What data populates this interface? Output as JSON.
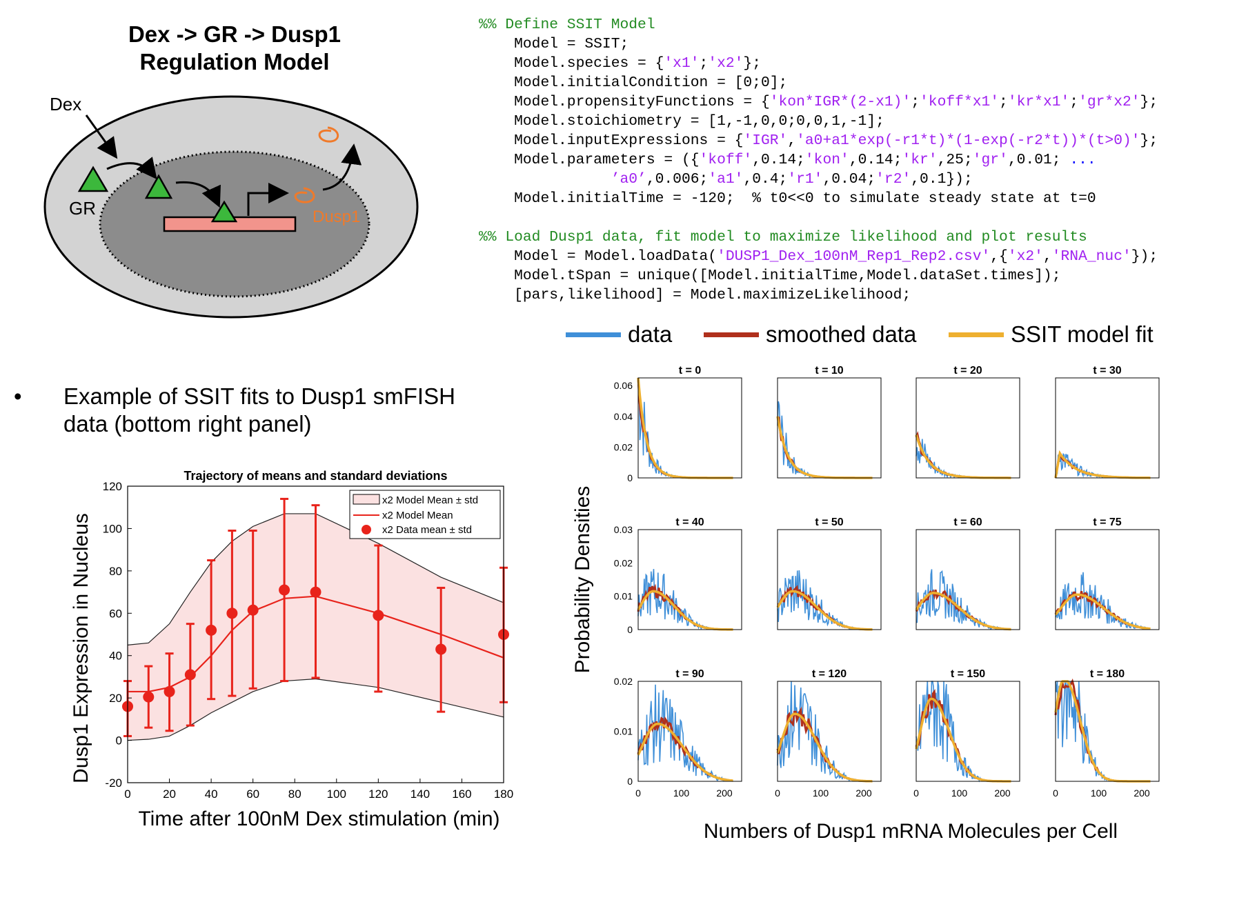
{
  "diagram": {
    "title_line1": "Dex -> GR -> Dusp1",
    "title_line2": "Regulation Model",
    "labels": {
      "dex": "Dex",
      "gr": "GR",
      "dusp1": "Dusp1"
    },
    "colors": {
      "outer_cell": "#d3d3d3",
      "nucleus": "#8c8c8c",
      "gr": "#3cb83c",
      "gene": "#f2948c",
      "mrna": "#f07a2a"
    }
  },
  "code": {
    "lines": [
      "%% Define SSIT Model",
      "    Model = SSIT;",
      "    Model.species = {'x1';'x2'};",
      "    Model.initialCondition = [0;0];",
      "    Model.propensityFunctions = {'kon*IGR*(2-x1)';'koff*x1';'kr*x1';'gr*x2'};",
      "    Model.stoichiometry = [1,-1,0,0;0,0,1,-1];",
      "    Model.inputExpressions = {'IGR','a0+a1*exp(-r1*t)*(1-exp(-r2*t))*(t>0)'};",
      "    Model.parameters = ({'koff',0.14;'kon',0.14;'kr',25;'gr',0.01; ...",
      "               ’a0’,0.006;'a1',0.4;'r1',0.04;'r2',0.1});",
      "    Model.initialTime = -120;  % t0<<0 to simulate steady state at t=0",
      "",
      "%% Load Dusp1 data, fit model to maximize likelihood and plot results",
      "    Model = Model.loadData('DUSP1_Dex_100nM_Rep1_Rep2.csv',{'x2','RNA_nuc'});",
      "    Model.tSpan = unique([Model.initialTime,Model.dataSet.times]);",
      "    [pars,likelihood] = Model.maximizeLikelihood;"
    ],
    "colors": {
      "comment": "#228b22",
      "string": "#a020f0",
      "ellipsis": "#0000ff"
    }
  },
  "bullet": {
    "marker": "•",
    "text": "Example of SSIT fits to Dusp1 smFISH data (bottom right panel)"
  },
  "legend_top": [
    {
      "label": "data",
      "color": "#3f8fd8"
    },
    {
      "label": "smoothed data",
      "color": "#b0301c"
    },
    {
      "label": "SSIT model fit",
      "color": "#eeb030"
    }
  ],
  "chart_data": [
    {
      "type": "line",
      "title": "Trajectory of means and standard deviations",
      "xlabel": "Time after 100nM Dex stimulation (min)",
      "ylabel": "Dusp1 Expression in Nucleus",
      "xlim": [
        0,
        180
      ],
      "ylim": [
        -20,
        120
      ],
      "xticks": [
        0,
        20,
        40,
        60,
        80,
        100,
        120,
        140,
        160,
        180
      ],
      "yticks": [
        -20,
        0,
        20,
        40,
        60,
        80,
        100,
        120
      ],
      "grid": false,
      "legend_position": "top-right",
      "legend": [
        "x2 Model Mean ± std",
        "x2 Model Mean",
        "x2 Data mean ± std"
      ],
      "series": [
        {
          "name": "x2 Model Mean",
          "x": [
            0,
            10,
            20,
            30,
            40,
            50,
            60,
            75,
            90,
            120,
            150,
            180
          ],
          "y": [
            23,
            23,
            25,
            30,
            40,
            52,
            61,
            67,
            68,
            60,
            50,
            39
          ],
          "color": "#e8231b"
        },
        {
          "name": "x2 Model Mean ± std",
          "x": [
            0,
            10,
            20,
            30,
            40,
            50,
            60,
            75,
            90,
            120,
            150,
            180
          ],
          "lower": [
            0,
            0.5,
            2,
            7,
            13,
            18,
            23,
            28,
            29,
            25,
            18,
            11
          ],
          "upper": [
            45,
            46,
            55,
            70,
            84,
            94,
            101,
            107,
            107,
            93,
            77,
            65
          ],
          "color": "#fbe1e1"
        },
        {
          "name": "x2 Data mean ± std",
          "x": [
            0,
            10,
            20,
            30,
            40,
            50,
            60,
            75,
            90,
            120,
            150,
            180
          ],
          "y": [
            16,
            20.5,
            23,
            31,
            52,
            60,
            61.5,
            71,
            70,
            59,
            43,
            50
          ],
          "err_low": [
            2,
            6,
            4.5,
            7,
            19.5,
            21,
            24.5,
            28,
            29.5,
            23,
            13.5,
            18
          ],
          "err_high": [
            28,
            35,
            41,
            55,
            85,
            99,
            99,
            114,
            111,
            92,
            72,
            81.5
          ],
          "color": "#e8231b"
        }
      ]
    },
    {
      "type": "line",
      "title": "",
      "ylabel": "Probability Densities",
      "xlabel": "Numbers of Dusp1 mRNA Molecules per Cell",
      "xlim": [
        0,
        240
      ],
      "xticks": [
        0,
        100,
        200
      ],
      "series_names": [
        "data",
        "smoothed data",
        "SSIT model fit"
      ],
      "panels": [
        {
          "title": "t = 0",
          "ymax": 0.065,
          "yticks": [
            0,
            0.02,
            0.04,
            0.06
          ],
          "shape": "decay",
          "peak": 0,
          "height": 0.065,
          "width": 20
        },
        {
          "title": "t = 10",
          "ymax": 0.065,
          "yticks": [],
          "shape": "decay",
          "peak": 0,
          "height": 0.04,
          "width": 24
        },
        {
          "title": "t = 20",
          "ymax": 0.065,
          "yticks": [],
          "shape": "decay",
          "peak": 0,
          "height": 0.028,
          "width": 30
        },
        {
          "title": "t = 30",
          "ymax": 0.065,
          "yticks": [],
          "shape": "decay",
          "peak": 10,
          "height": 0.016,
          "width": 38
        },
        {
          "title": "t = 40",
          "ymax": 0.03,
          "yticks": [
            0,
            0.01,
            0.02,
            0.03
          ],
          "shape": "hump",
          "peak": 35,
          "height": 0.0115,
          "width": 38
        },
        {
          "title": "t = 50",
          "ymax": 0.03,
          "yticks": [],
          "shape": "hump",
          "peak": 35,
          "height": 0.0115,
          "width": 42
        },
        {
          "title": "t = 60",
          "ymax": 0.03,
          "yticks": [],
          "shape": "hump",
          "peak": 40,
          "height": 0.011,
          "width": 45
        },
        {
          "title": "t = 75",
          "ymax": 0.03,
          "yticks": [],
          "shape": "hump",
          "peak": 50,
          "height": 0.0105,
          "width": 48
        },
        {
          "title": "t = 90",
          "ymax": 0.02,
          "yticks": [
            0,
            0.01,
            0.02
          ],
          "shape": "hump",
          "peak": 45,
          "height": 0.0115,
          "width": 45
        },
        {
          "title": "t = 120",
          "ymax": 0.02,
          "yticks": [],
          "shape": "hump",
          "peak": 40,
          "height": 0.0135,
          "width": 38
        },
        {
          "title": "t = 150",
          "ymax": 0.02,
          "yticks": [],
          "shape": "hump",
          "peak": 35,
          "height": 0.0165,
          "width": 32
        },
        {
          "title": "t = 180",
          "ymax": 0.02,
          "yticks": [],
          "shape": "hump",
          "peak": 20,
          "height": 0.0205,
          "width": 28
        }
      ]
    }
  ]
}
